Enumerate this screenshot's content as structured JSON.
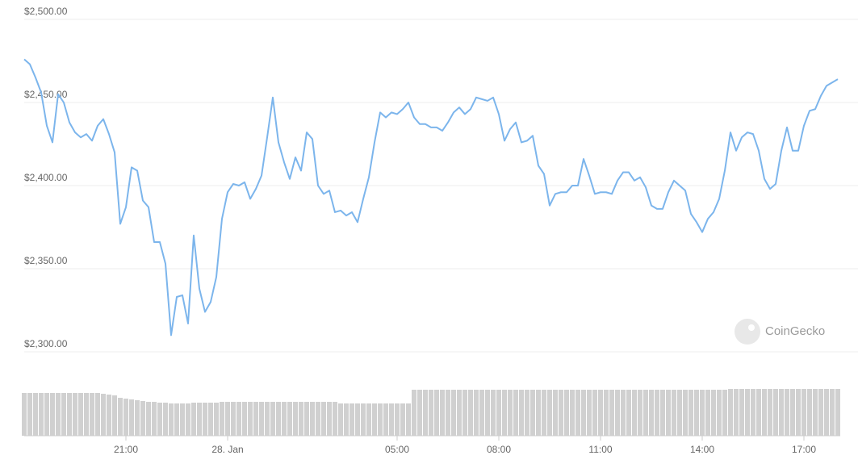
{
  "chart_data": [
    {
      "type": "line",
      "color": "#7cb5ec",
      "values": [
        2476,
        2473,
        2465,
        2456,
        2436,
        2426,
        2455,
        2450,
        2438,
        2432,
        2429,
        2431,
        2427,
        2436,
        2440,
        2431,
        2420,
        2377,
        2387,
        2411,
        2409,
        2391,
        2387,
        2366,
        2366,
        2353,
        2310,
        2333,
        2334,
        2317,
        2370,
        2338,
        2324,
        2330,
        2345,
        2380,
        2396,
        2401,
        2400,
        2402,
        2392,
        2398,
        2406,
        2429,
        2453,
        2426,
        2414,
        2404,
        2417,
        2409,
        2432,
        2428,
        2400,
        2395,
        2397,
        2384,
        2385,
        2382,
        2384,
        2378,
        2392,
        2405,
        2426,
        2444,
        2441,
        2444,
        2443,
        2446,
        2450,
        2441,
        2437,
        2437,
        2435,
        2435,
        2433,
        2438,
        2444,
        2447,
        2443,
        2446,
        2453,
        2452,
        2451,
        2453,
        2443,
        2427,
        2434,
        2438,
        2426,
        2427,
        2430,
        2412,
        2407,
        2388,
        2395,
        2396,
        2396,
        2400,
        2400,
        2416,
        2406,
        2395,
        2396,
        2396,
        2395,
        2403,
        2408,
        2408,
        2403,
        2405,
        2399,
        2388,
        2386,
        2386,
        2396,
        2403,
        2400,
        2397,
        2383,
        2378,
        2372,
        2380,
        2384,
        2392,
        2409,
        2432,
        2421,
        2429,
        2432,
        2431,
        2421,
        2404,
        2398,
        2401,
        2421,
        2435,
        2421,
        2421,
        2436,
        2445,
        2446,
        2454,
        2460,
        2462,
        2464
      ],
      "xlim": [
        0,
        144
      ],
      "xticks": [
        {
          "value": 18,
          "label": "21:00"
        },
        {
          "value": 36,
          "label": "28. Jan"
        },
        {
          "value": 66,
          "label": "05:00"
        },
        {
          "value": 84,
          "label": "08:00"
        },
        {
          "value": 102,
          "label": "11:00"
        },
        {
          "value": 120,
          "label": "14:00"
        },
        {
          "value": 138,
          "label": "17:00"
        }
      ],
      "ylim": [
        2300,
        2500
      ],
      "yticks": [
        {
          "value": 2300,
          "label": "$2,300.00"
        },
        {
          "value": 2350,
          "label": "$2,350.00"
        },
        {
          "value": 2400,
          "label": "$2,400.00"
        },
        {
          "value": 2450,
          "label": "$2,450.00"
        },
        {
          "value": 2500,
          "label": "$2,500.00"
        }
      ],
      "grid": true,
      "watermark": "CoinGecko"
    },
    {
      "type": "bar",
      "color": "#d0d0d0",
      "values": [
        53,
        53,
        53,
        53,
        53,
        53,
        53,
        53,
        53,
        53,
        53,
        53,
        53,
        53,
        52,
        51,
        50,
        47,
        46,
        45,
        44,
        43,
        42,
        42,
        41,
        41,
        40,
        40,
        40,
        40,
        41,
        41,
        41,
        41,
        41,
        42,
        42,
        42,
        42,
        42,
        42,
        42,
        42,
        42,
        42,
        42,
        42,
        42,
        42,
        42,
        42,
        42,
        42,
        42,
        42,
        42,
        40,
        40,
        40,
        40,
        40,
        40,
        40,
        40,
        40,
        40,
        40,
        40,
        40,
        57,
        57,
        57,
        57,
        57,
        57,
        57,
        57,
        57,
        57,
        57,
        57,
        57,
        57,
        57,
        57,
        57,
        57,
        57,
        57,
        57,
        57,
        57,
        57,
        57,
        57,
        57,
        57,
        57,
        57,
        57,
        57,
        57,
        57,
        57,
        57,
        57,
        57,
        57,
        57,
        57,
        57,
        57,
        57,
        57,
        57,
        57,
        57,
        57,
        57,
        57,
        57,
        57,
        57,
        57,
        57,
        58,
        58,
        58,
        58,
        58,
        58,
        58,
        58,
        58,
        58,
        58,
        58,
        58,
        58,
        58,
        58,
        58,
        58,
        58,
        58
      ],
      "xlim": [
        0,
        144
      ],
      "ylim": [
        0,
        100
      ]
    }
  ]
}
